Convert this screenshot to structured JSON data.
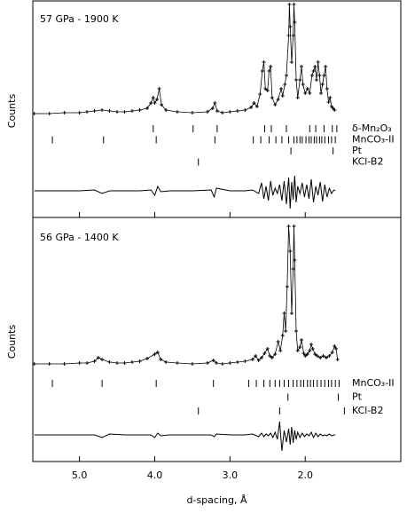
{
  "chart_data": [
    {
      "type": "line",
      "annotation": "57 GPa - 1900 K",
      "ylabel": "Counts",
      "xlim": [
        5.62,
        0.73
      ],
      "ylim": [
        -115,
        129
      ],
      "series": [
        {
          "color": "#000000",
          "marker": "plus",
          "x": [
            5.6,
            5.4,
            5.2,
            5.0,
            4.9,
            4.8,
            4.7,
            4.6,
            4.5,
            4.4,
            4.3,
            4.2,
            4.1,
            4.05,
            4.02,
            4.0,
            3.97,
            3.94,
            3.91,
            3.85,
            3.7,
            3.5,
            3.3,
            3.23,
            3.2,
            3.17,
            3.1,
            3.0,
            2.9,
            2.8,
            2.72,
            2.68,
            2.64,
            2.6,
            2.57,
            2.55,
            2.53,
            2.5,
            2.48,
            2.46,
            2.44,
            2.4,
            2.36,
            2.32,
            2.3,
            2.27,
            2.25,
            2.22,
            2.21,
            2.2,
            2.18,
            2.16,
            2.15,
            2.14,
            2.12,
            2.1,
            2.07,
            2.05,
            2.03,
            2.0,
            1.97,
            1.94,
            1.91,
            1.89,
            1.87,
            1.85,
            1.83,
            1.81,
            1.79,
            1.77,
            1.75,
            1.73,
            1.71,
            1.69,
            1.67,
            1.65,
            1.63,
            1.61
          ],
          "values": [
            2,
            2,
            3,
            3,
            4,
            5,
            6,
            5,
            4,
            4,
            5,
            6,
            8,
            14,
            20,
            14,
            18,
            30,
            12,
            6,
            4,
            3,
            4,
            8,
            14,
            5,
            3,
            4,
            5,
            6,
            9,
            14,
            10,
            24,
            50,
            60,
            30,
            28,
            50,
            55,
            20,
            12,
            18,
            30,
            22,
            35,
            45,
            90,
            125,
            100,
            60,
            90,
            125,
            105,
            40,
            20,
            40,
            55,
            35,
            25,
            30,
            25,
            45,
            50,
            55,
            40,
            60,
            45,
            25,
            35,
            45,
            55,
            30,
            15,
            20,
            10,
            8,
            6
          ]
        },
        {
          "color": "#000000",
          "x": [
            5.6,
            5.4,
            5.2,
            5.0,
            4.8,
            4.7,
            4.6,
            4.4,
            4.2,
            4.05,
            4.0,
            3.96,
            3.92,
            3.8,
            3.5,
            3.25,
            3.21,
            3.18,
            3.0,
            2.8,
            2.7,
            2.62,
            2.58,
            2.55,
            2.52,
            2.49,
            2.46,
            2.43,
            2.4,
            2.37,
            2.34,
            2.31,
            2.28,
            2.25,
            2.22,
            2.2,
            2.18,
            2.16,
            2.14,
            2.12,
            2.1,
            2.07,
            2.04,
            2.01,
            1.98,
            1.95,
            1.92,
            1.89,
            1.86,
            1.83,
            1.8,
            1.77,
            1.74,
            1.71,
            1.68,
            1.65,
            1.62,
            1.6
          ],
          "values": [
            -85,
            -85,
            -85,
            -85,
            -84,
            -88,
            -85,
            -85,
            -85,
            -84,
            -90,
            -80,
            -86,
            -85,
            -85,
            -84,
            -92,
            -82,
            -85,
            -85,
            -84,
            -88,
            -76,
            -94,
            -80,
            -96,
            -74,
            -90,
            -82,
            -88,
            -78,
            -96,
            -74,
            -100,
            -70,
            -105,
            -75,
            -95,
            -68,
            -98,
            -80,
            -88,
            -76,
            -92,
            -78,
            -94,
            -72,
            -98,
            -80,
            -90,
            -75,
            -97,
            -78,
            -92,
            -82,
            -88,
            -84,
            -85
          ]
        }
      ],
      "reflections": [
        {
          "label": "δ-Mn₂O₃",
          "positions": [
            4.02,
            3.49,
            3.17,
            2.54,
            2.45,
            2.25,
            1.94,
            1.86,
            1.75,
            1.64,
            1.58
          ]
        },
        {
          "label": "MnCO₃-II",
          "positions": [
            5.36,
            4.68,
            3.98,
            3.2,
            2.69,
            2.59,
            2.48,
            2.39,
            2.31,
            2.22,
            2.15,
            2.11,
            2.07,
            2.04,
            1.99,
            1.95,
            1.92,
            1.88,
            1.85,
            1.81,
            1.78,
            1.74,
            1.69,
            1.65,
            1.6
          ]
        },
        {
          "label": "Pt",
          "positions": [
            2.19,
            1.63
          ]
        },
        {
          "label": "KCl-B2",
          "positions": [
            3.42
          ]
        }
      ]
    },
    {
      "type": "line",
      "annotation": "56 GPa - 1400 K",
      "ylabel": "Counts",
      "xlabel": "d-spacing, Å",
      "xlim": [
        5.62,
        0.73
      ],
      "ylim": [
        -107,
        168
      ],
      "xticks": [
        {
          "value": 5,
          "label": "5.0"
        },
        {
          "value": 4,
          "label": "4.0"
        },
        {
          "value": 3,
          "label": "3.0"
        },
        {
          "value": 2,
          "label": "2.0"
        }
      ],
      "series": [
        {
          "color": "#000000",
          "marker": "plus",
          "x": [
            5.6,
            5.4,
            5.2,
            5.0,
            4.9,
            4.8,
            4.75,
            4.7,
            4.6,
            4.5,
            4.4,
            4.3,
            4.2,
            4.1,
            4.0,
            3.96,
            3.92,
            3.85,
            3.7,
            3.5,
            3.3,
            3.22,
            3.18,
            3.1,
            3.0,
            2.9,
            2.8,
            2.7,
            2.66,
            2.62,
            2.58,
            2.54,
            2.5,
            2.47,
            2.44,
            2.4,
            2.36,
            2.33,
            2.3,
            2.28,
            2.26,
            2.24,
            2.22,
            2.2,
            2.18,
            2.16,
            2.15,
            2.14,
            2.12,
            2.1,
            2.07,
            2.05,
            2.02,
            2.0,
            1.97,
            1.94,
            1.92,
            1.9,
            1.87,
            1.84,
            1.8,
            1.76,
            1.72,
            1.68,
            1.64,
            1.61,
            1.59,
            1.57
          ],
          "values": [
            3,
            3,
            3,
            4,
            4,
            6,
            10,
            8,
            5,
            4,
            4,
            5,
            6,
            9,
            14,
            16,
            8,
            5,
            4,
            3,
            4,
            7,
            4,
            3,
            4,
            5,
            6,
            8,
            12,
            7,
            10,
            15,
            20,
            12,
            10,
            14,
            28,
            18,
            35,
            60,
            40,
            90,
            158,
            130,
            60,
            110,
            158,
            120,
            40,
            18,
            22,
            30,
            15,
            12,
            14,
            18,
            25,
            20,
            14,
            12,
            10,
            12,
            10,
            12,
            16,
            23,
            20,
            8
          ]
        },
        {
          "color": "#000000",
          "x": [
            5.6,
            5.4,
            5.2,
            5.0,
            4.8,
            4.7,
            4.6,
            4.4,
            4.2,
            4.05,
            4.0,
            3.96,
            3.92,
            3.8,
            3.5,
            3.25,
            3.21,
            3.18,
            3.0,
            2.8,
            2.7,
            2.62,
            2.58,
            2.55,
            2.52,
            2.49,
            2.46,
            2.43,
            2.4,
            2.37,
            2.34,
            2.31,
            2.28,
            2.25,
            2.22,
            2.2,
            2.18,
            2.16,
            2.14,
            2.12,
            2.1,
            2.07,
            2.04,
            2.01,
            1.98,
            1.95,
            1.92,
            1.89,
            1.86,
            1.83,
            1.8,
            1.77,
            1.74,
            1.71,
            1.68,
            1.65,
            1.62,
            1.6
          ],
          "values": [
            -77,
            -77,
            -77,
            -77,
            -77,
            -80,
            -76,
            -77,
            -77,
            -77,
            -80,
            -75,
            -78,
            -77,
            -77,
            -77,
            -79,
            -76,
            -77,
            -77,
            -76,
            -79,
            -75,
            -79,
            -76,
            -78,
            -75,
            -80,
            -74,
            -82,
            -62,
            -95,
            -72,
            -85,
            -70,
            -88,
            -68,
            -86,
            -72,
            -82,
            -74,
            -80,
            -75,
            -79,
            -76,
            -78,
            -74,
            -80,
            -75,
            -79,
            -76,
            -78,
            -77,
            -78,
            -76,
            -78,
            -77,
            -77
          ]
        }
      ],
      "reflections": [
        {
          "label": "MnCO₃-II",
          "positions": [
            5.36,
            4.7,
            3.98,
            3.22,
            2.75,
            2.65,
            2.55,
            2.47,
            2.4,
            2.34,
            2.28,
            2.22,
            2.16,
            2.11,
            2.06,
            2.02,
            1.97,
            1.93,
            1.89,
            1.84,
            1.79,
            1.74,
            1.69,
            1.65,
            1.6,
            1.55
          ]
        },
        {
          "label": "Pt",
          "positions": [
            2.23,
            1.56
          ]
        },
        {
          "label": "KCl-B2",
          "positions": [
            3.42,
            2.34,
            1.48
          ]
        }
      ]
    }
  ]
}
